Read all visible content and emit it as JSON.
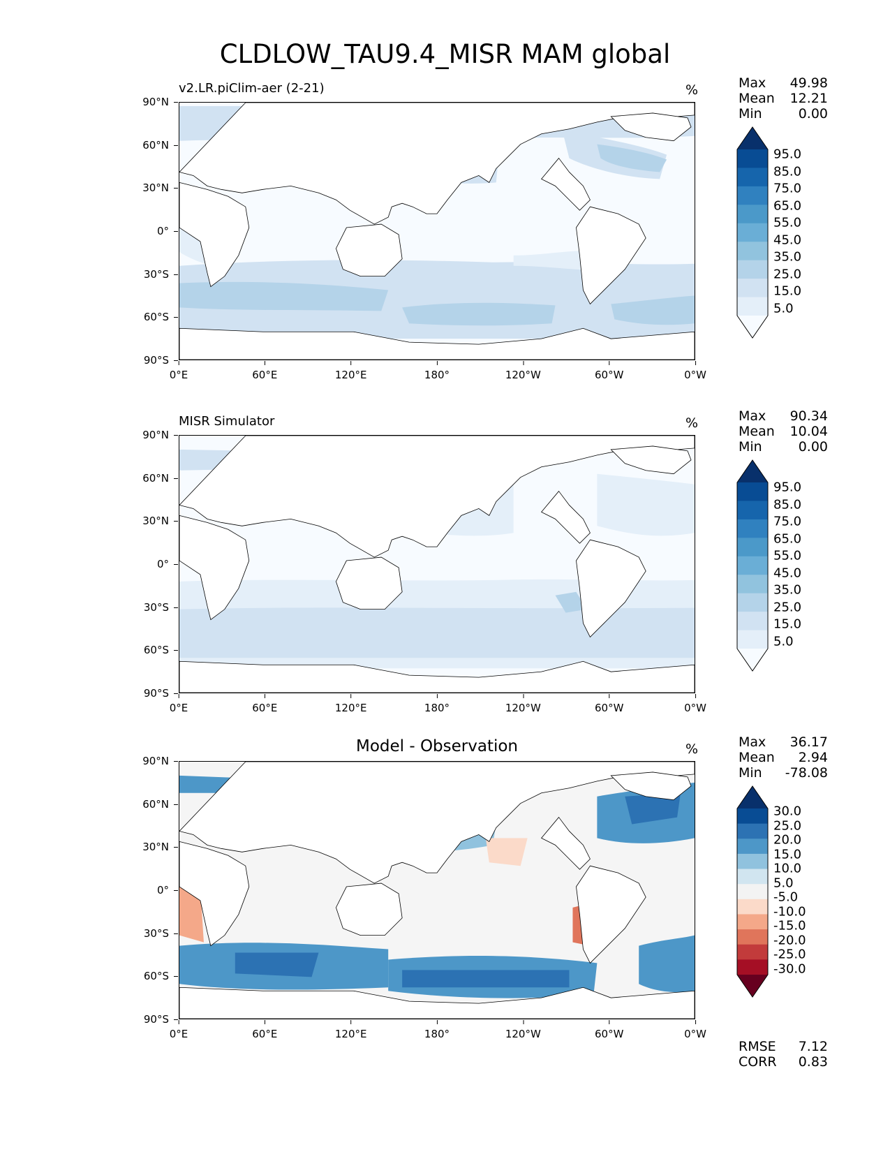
{
  "figure": {
    "title": "CLDLOW_TAU9.4_MISR MAM global"
  },
  "axes": {
    "lat_ticks": [
      "90°N",
      "60°N",
      "30°N",
      "0°",
      "30°S",
      "60°S",
      "90°S"
    ],
    "lon_ticks": [
      "0°E",
      "60°E",
      "120°E",
      "180°",
      "120°W",
      "60°W",
      "0°W"
    ]
  },
  "panels": [
    {
      "id": "model",
      "title": "v2.LR.piClim-aer (2-21)",
      "units": "%",
      "stats": [
        {
          "label": "Max",
          "value": "49.98"
        },
        {
          "label": "Mean",
          "value": "12.21"
        },
        {
          "label": "Min",
          "value": "0.00"
        }
      ],
      "colorbar": {
        "labels": [
          "95.0",
          "85.0",
          "75.0",
          "65.0",
          "55.0",
          "45.0",
          "35.0",
          "25.0",
          "15.0",
          "5.0"
        ],
        "colors_top_to_bottom": [
          "#08306b",
          "#084c94",
          "#1665ac",
          "#3081bf",
          "#4b99c9",
          "#6aaed6",
          "#91c3de",
          "#b4d3e9",
          "#d1e2f2",
          "#e4eff9",
          "#f7fbff"
        ]
      }
    },
    {
      "id": "obs",
      "title": "MISR Simulator",
      "units": "%",
      "stats": [
        {
          "label": "Max",
          "value": "90.34"
        },
        {
          "label": "Mean",
          "value": "10.04"
        },
        {
          "label": "Min",
          "value": "0.00"
        }
      ],
      "colorbar": {
        "labels": [
          "95.0",
          "85.0",
          "75.0",
          "65.0",
          "55.0",
          "45.0",
          "35.0",
          "25.0",
          "15.0",
          "5.0"
        ],
        "colors_top_to_bottom": [
          "#08306b",
          "#084c94",
          "#1665ac",
          "#3081bf",
          "#4b99c9",
          "#6aaed6",
          "#91c3de",
          "#b4d3e9",
          "#d1e2f2",
          "#e4eff9",
          "#f7fbff"
        ]
      }
    },
    {
      "id": "diff",
      "title": "Model - Observation",
      "units": "%",
      "stats": [
        {
          "label": "Max",
          "value": "36.17"
        },
        {
          "label": "Mean",
          "value": "2.94"
        },
        {
          "label": "Min",
          "value": "-78.08"
        }
      ],
      "colorbar": {
        "labels": [
          "30.0",
          "25.0",
          "20.0",
          "15.0",
          "10.0",
          "5.0",
          "-5.0",
          "-10.0",
          "-15.0",
          "-20.0",
          "-25.0",
          "-30.0"
        ],
        "colors_top_to_bottom": [
          "#08306b",
          "#084c94",
          "#2c72b3",
          "#4d97c8",
          "#90c2de",
          "#d1e5f0",
          "#f3f3f3",
          "#fbdac9",
          "#f4a889",
          "#e0755b",
          "#c23b3b",
          "#a50f25",
          "#67001f"
        ]
      },
      "metrics": [
        {
          "label": "RMSE",
          "value": "7.12"
        },
        {
          "label": "CORR",
          "value": "0.83"
        }
      ]
    }
  ],
  "colors": {
    "ocean_model": "#f7fbff",
    "ocean_obs": "#f7fbff",
    "ocean_diff": "#f5f5f5",
    "land": "#ffffff",
    "coastline": "#000000"
  }
}
